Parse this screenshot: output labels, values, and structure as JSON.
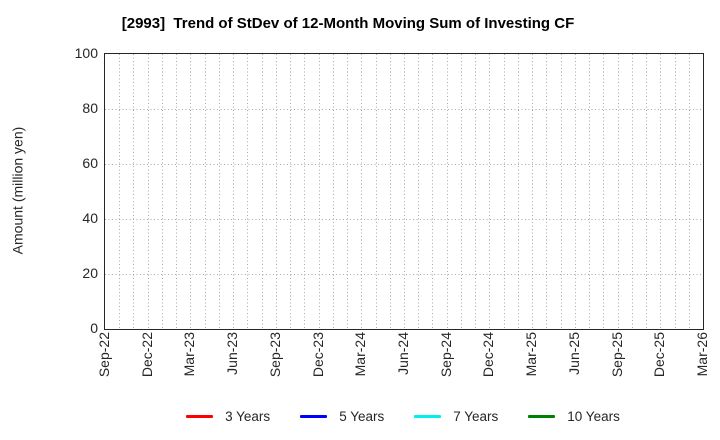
{
  "chart_data": {
    "type": "line",
    "title": "[2993]  Trend of StDev of 12-Month Moving Sum of Investing CF",
    "ylabel": "Amount (million yen)",
    "ylim": [
      0,
      100
    ],
    "yticks": [
      0,
      20,
      40,
      60,
      80,
      100
    ],
    "xticks": [
      "Sep-22",
      "Dec-22",
      "Mar-23",
      "Jun-23",
      "Sep-23",
      "Dec-23",
      "Mar-24",
      "Jun-24",
      "Sep-24",
      "Dec-24",
      "Mar-25",
      "Jun-25",
      "Sep-25",
      "Dec-25",
      "Mar-26"
    ],
    "months_per_tick": 3,
    "total_month_intervals": 42,
    "grid": "dotted",
    "grid_color": "#aaaaaa",
    "frame_color": "#262626",
    "legend_position": "bottom",
    "series": [
      {
        "name": "3 Years",
        "color": "#ff0000",
        "values": []
      },
      {
        "name": "5 Years",
        "color": "#0000ff",
        "values": []
      },
      {
        "name": "7 Years",
        "color": "#00eeee",
        "values": []
      },
      {
        "name": "10 Years",
        "color": "#008000",
        "values": []
      }
    ]
  }
}
